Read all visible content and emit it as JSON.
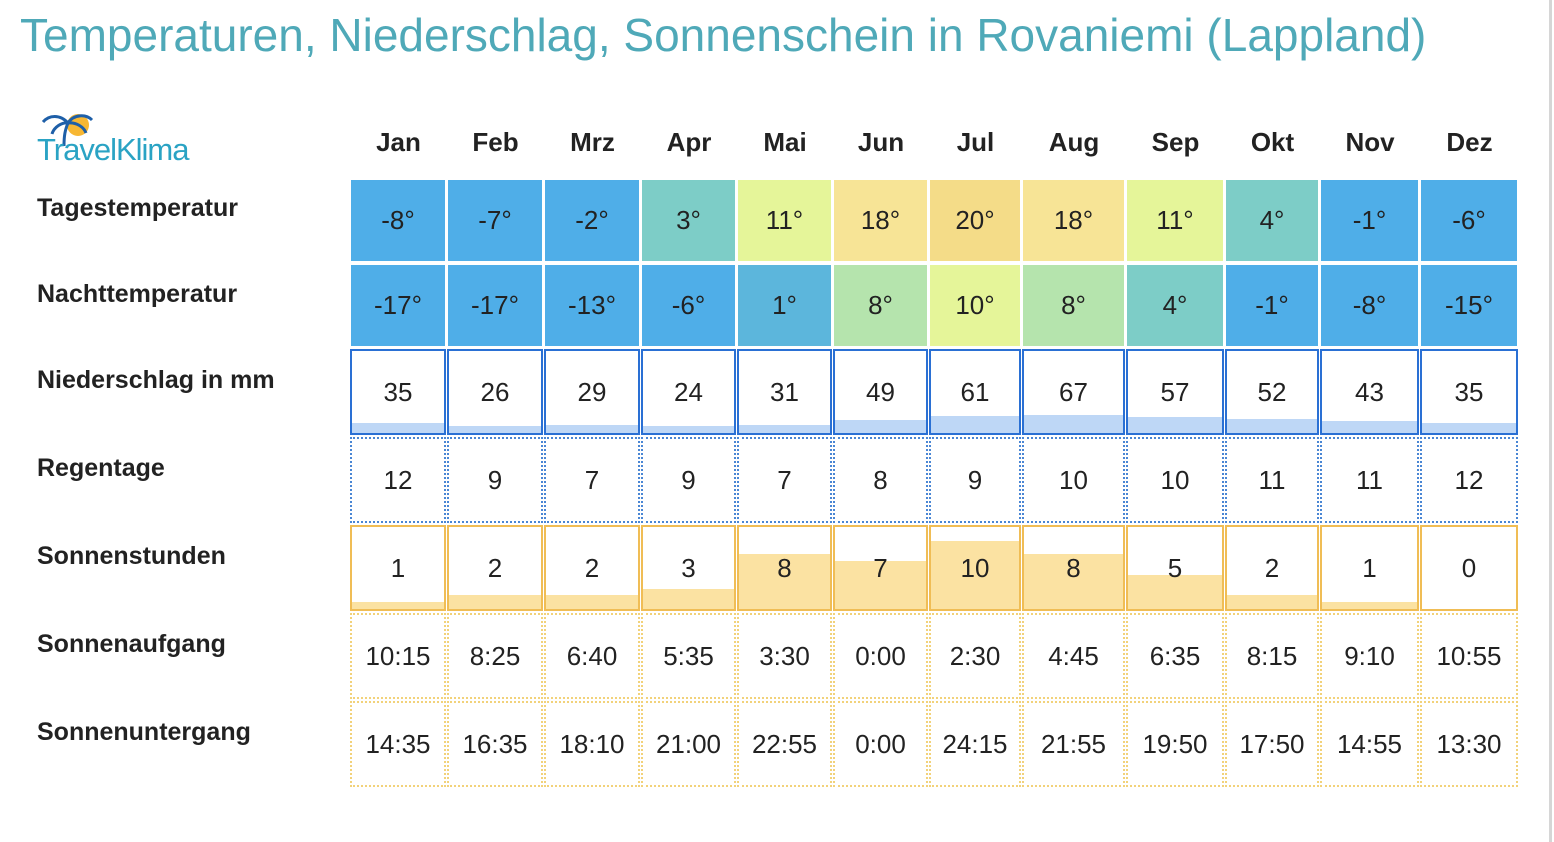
{
  "title": "Temperaturen, Niederschlag, Sonnenschein in Rovaniemi (Lappland)",
  "logo": {
    "text": "TravelKlima"
  },
  "colors": {
    "title": "#4fa9b8",
    "temp_blue": "#4faee8",
    "temp_steel": "#5cb6dc",
    "temp_teal": "#7dcdc7",
    "temp_mint": "#b5e4ad",
    "temp_lime": "#e5f599",
    "temp_yellow": "#f7e496",
    "temp_gold": "#f4dc88",
    "rain_border": "#2a70d4",
    "rain_fill": "#bed7f6",
    "sun_border": "#f0bd55",
    "sun_fill": "#fbe2a2"
  },
  "chart_data": {
    "type": "table",
    "title": "Temperaturen, Niederschlag, Sonnenschein in Rovaniemi (Lappland)",
    "categories": [
      "Jan",
      "Feb",
      "Mrz",
      "Apr",
      "Mai",
      "Jun",
      "Jul",
      "Aug",
      "Sep",
      "Okt",
      "Nov",
      "Dez"
    ],
    "rows": [
      {
        "key": "day_temp",
        "label": "Tagestemperatur",
        "unit": "°",
        "values": [
          -8,
          -7,
          -2,
          3,
          11,
          18,
          20,
          18,
          11,
          4,
          -1,
          -6
        ]
      },
      {
        "key": "night_temp",
        "label": "Nachttemperatur",
        "unit": "°",
        "values": [
          -17,
          -17,
          -13,
          -6,
          1,
          8,
          10,
          8,
          4,
          -1,
          -8,
          -15
        ]
      },
      {
        "key": "precip",
        "label": "Niederschlag in mm",
        "values": [
          35,
          26,
          29,
          24,
          31,
          49,
          61,
          67,
          57,
          52,
          43,
          35
        ]
      },
      {
        "key": "rain_days",
        "label": "Regentage",
        "values": [
          12,
          9,
          7,
          9,
          7,
          8,
          9,
          10,
          10,
          11,
          11,
          12
        ]
      },
      {
        "key": "sun_hours",
        "label": "Sonnenstunden",
        "values": [
          1,
          2,
          2,
          3,
          8,
          7,
          10,
          8,
          5,
          2,
          1,
          0
        ]
      },
      {
        "key": "sunrise",
        "label": "Sonnenaufgang",
        "values": [
          "10:15",
          "8:25",
          "6:40",
          "5:35",
          "3:30",
          "0:00",
          "2:30",
          "4:45",
          "6:35",
          "8:15",
          "9:10",
          "10:55"
        ]
      },
      {
        "key": "sunset",
        "label": "Sonnenuntergang",
        "values": [
          "14:35",
          "16:35",
          "18:10",
          "21:00",
          "22:55",
          "0:00",
          "24:15",
          "21:55",
          "19:50",
          "17:50",
          "14:55",
          "13:30"
        ]
      }
    ],
    "bar_max": {
      "precip": 300,
      "sun_hours": 12
    }
  }
}
